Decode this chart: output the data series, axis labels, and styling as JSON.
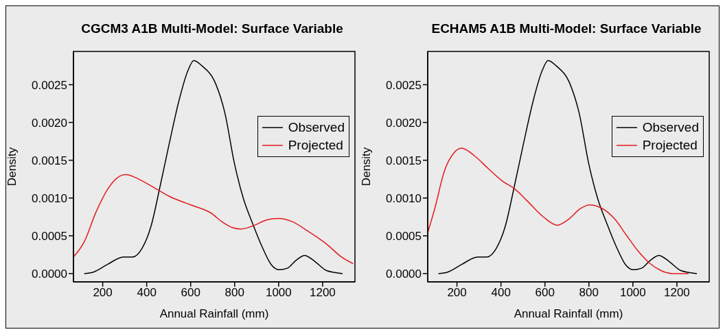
{
  "chart_data": [
    {
      "type": "line",
      "title": "CGCM3 A1B Multi-Model: Surface Variable",
      "xlabel": "Annual Rainfall (mm)",
      "ylabel": "Density",
      "xlim": [
        67,
        1347
      ],
      "ylim": [
        -0.00011,
        0.00294
      ],
      "xticks": [
        200,
        400,
        600,
        800,
        1000,
        1200
      ],
      "yticks": [
        {
          "value": 0,
          "label": "0.0000"
        },
        {
          "value": 0.0005,
          "label": "0.0005"
        },
        {
          "value": 0.001,
          "label": "0.0010"
        },
        {
          "value": 0.0015,
          "label": "0.0015"
        },
        {
          "value": 0.002,
          "label": "0.0020"
        },
        {
          "value": 0.0025,
          "label": "0.0025"
        }
      ],
      "grid": false,
      "legend": "top right",
      "marker": "none",
      "line_style": "solid",
      "series": [
        {
          "name": "Observed",
          "color": "#000000",
          "x": [
            116,
            158,
            221,
            294,
            336,
            378,
            420,
            462,
            504,
            546,
            588,
            614,
            651,
            714,
            756,
            798,
            840,
            882,
            924,
            966,
            1003,
            1039,
            1081,
            1118,
            1165,
            1218,
            1291
          ],
          "values": [
            0,
            2e-05,
            0.00012,
            0.00022,
            0.00022,
            0.00033,
            0.00063,
            0.00117,
            0.00174,
            0.00228,
            0.00269,
            0.00282,
            0.00275,
            0.00251,
            0.00212,
            0.00147,
            0.00099,
            0.00066,
            0.00036,
            0.00012,
            5e-05,
            7e-05,
            0.00018,
            0.00024,
            0.00016,
            4e-05,
            0
          ]
        },
        {
          "name": "Projected",
          "color": "#e41a1c",
          "x": [
            67,
            116,
            169,
            221,
            263,
            305,
            357,
            420,
            504,
            609,
            693,
            745,
            788,
            830,
            882,
            945,
            997,
            1060,
            1134,
            1218,
            1281,
            1339
          ],
          "values": [
            0.00022,
            0.00042,
            0.00081,
            0.00111,
            0.00126,
            0.00131,
            0.00126,
            0.00116,
            0.00102,
            0.0009,
            0.0008,
            0.00068,
            0.00061,
            0.00059,
            0.00063,
            0.00071,
            0.00073,
            0.00069,
            0.00056,
            0.00039,
            0.00023,
            0.00013
          ]
        }
      ]
    },
    {
      "type": "line",
      "title": "ECHAM5 A1B Multi-Model: Surface Variable",
      "xlabel": "Annual Rainfall (mm)",
      "ylabel": "Density",
      "xlim": [
        67,
        1347
      ],
      "ylim": [
        -0.00011,
        0.00294
      ],
      "xticks": [
        200,
        400,
        600,
        800,
        1000,
        1200
      ],
      "yticks": [
        {
          "value": 0,
          "label": "0.0000"
        },
        {
          "value": 0.0005,
          "label": "0.0005"
        },
        {
          "value": 0.001,
          "label": "0.0010"
        },
        {
          "value": 0.0015,
          "label": "0.0015"
        },
        {
          "value": 0.002,
          "label": "0.0020"
        },
        {
          "value": 0.0025,
          "label": "0.0025"
        }
      ],
      "grid": false,
      "legend": "top right",
      "marker": "none",
      "line_style": "solid",
      "series": [
        {
          "name": "Observed",
          "color": "#000000",
          "x": [
            116,
            158,
            221,
            294,
            336,
            378,
            420,
            462,
            504,
            546,
            588,
            614,
            651,
            714,
            756,
            798,
            840,
            882,
            924,
            966,
            1003,
            1039,
            1081,
            1118,
            1165,
            1218,
            1291
          ],
          "values": [
            0,
            2e-05,
            0.00012,
            0.00022,
            0.00022,
            0.00033,
            0.00063,
            0.00117,
            0.00174,
            0.00228,
            0.00269,
            0.00282,
            0.00275,
            0.00251,
            0.00212,
            0.00147,
            0.00099,
            0.00066,
            0.00036,
            0.00012,
            5e-05,
            7e-05,
            0.00018,
            0.00024,
            0.00016,
            4e-05,
            0
          ]
        },
        {
          "name": "Projected",
          "color": "#e41a1c",
          "x": [
            67,
            100,
            142,
            184,
            221,
            279,
            342,
            404,
            467,
            520,
            593,
            656,
            708,
            761,
            803,
            855,
            918,
            970,
            1023,
            1075,
            1128,
            1180,
            1253
          ],
          "values": [
            0.00054,
            0.00087,
            0.00135,
            0.00159,
            0.00166,
            0.00156,
            0.00139,
            0.00123,
            0.00111,
            0.00096,
            0.00075,
            0.00064,
            0.00072,
            0.00086,
            0.00091,
            0.00087,
            0.00072,
            0.00051,
            0.0003,
            0.00014,
            4e-05,
            0,
            0
          ]
        }
      ]
    }
  ]
}
